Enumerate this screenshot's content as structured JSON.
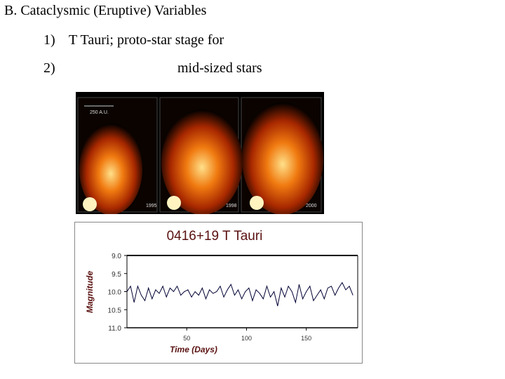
{
  "slide": {
    "title": "B. Cataclysmic (Eruptive) Variables",
    "items": [
      {
        "number": "1)",
        "text": "T Tauri; proto-star stage for"
      },
      {
        "number": "2)",
        "text": "mid-sized stars"
      }
    ],
    "image": {
      "scale_label": "250 A.U.",
      "panel_labels": [
        "1995",
        "1998",
        "2000"
      ]
    }
  },
  "chart_data": {
    "type": "line",
    "title": "0416+19 T Tauri",
    "x_label": "Time (Days)",
    "y_label": "Magnitude",
    "x": [
      0,
      3,
      6,
      9,
      12,
      15,
      18,
      21,
      24,
      27,
      30,
      33,
      36,
      39,
      42,
      45,
      48,
      51,
      54,
      57,
      60,
      63,
      66,
      69,
      72,
      75,
      78,
      81,
      84,
      87,
      90,
      93,
      96,
      99,
      102,
      105,
      108,
      111,
      114,
      117,
      120,
      123,
      126,
      129,
      132,
      135,
      138,
      141,
      144,
      147,
      150,
      153,
      156,
      159,
      162,
      165,
      168,
      171,
      174,
      177,
      180,
      183,
      186,
      189
    ],
    "series": [
      {
        "name": "0416+19 T Tauri",
        "color": "#000033",
        "values": [
          10.0,
          9.85,
          10.3,
          9.85,
          10.1,
          10.25,
          9.9,
          10.2,
          9.95,
          10.05,
          9.85,
          10.15,
          9.9,
          10.0,
          9.85,
          10.1,
          10.0,
          9.95,
          10.15,
          10.0,
          10.1,
          9.9,
          10.2,
          9.95,
          10.05,
          10.0,
          9.85,
          10.15,
          9.95,
          9.8,
          10.1,
          9.95,
          10.2,
          10.0,
          9.9,
          10.25,
          9.95,
          10.05,
          10.2,
          9.85,
          10.15,
          10.0,
          10.4,
          9.9,
          10.15,
          9.85,
          10.0,
          10.3,
          9.8,
          10.2,
          10.0,
          9.85,
          10.25,
          10.1,
          9.95,
          10.2,
          9.9,
          9.85,
          10.1,
          9.9,
          9.75,
          9.95,
          9.85,
          10.1
        ]
      }
    ],
    "xlim": [
      0,
      193
    ],
    "xticks": [
      50,
      100,
      150
    ],
    "ylim": [
      9,
      11
    ],
    "invert_y": true,
    "yticks": [
      {
        "value": 9,
        "label": "9.0"
      },
      9.5,
      {
        "value": 10,
        "label": "10.0"
      },
      10.5,
      {
        "value": 11,
        "label": "11.0"
      }
    ]
  }
}
